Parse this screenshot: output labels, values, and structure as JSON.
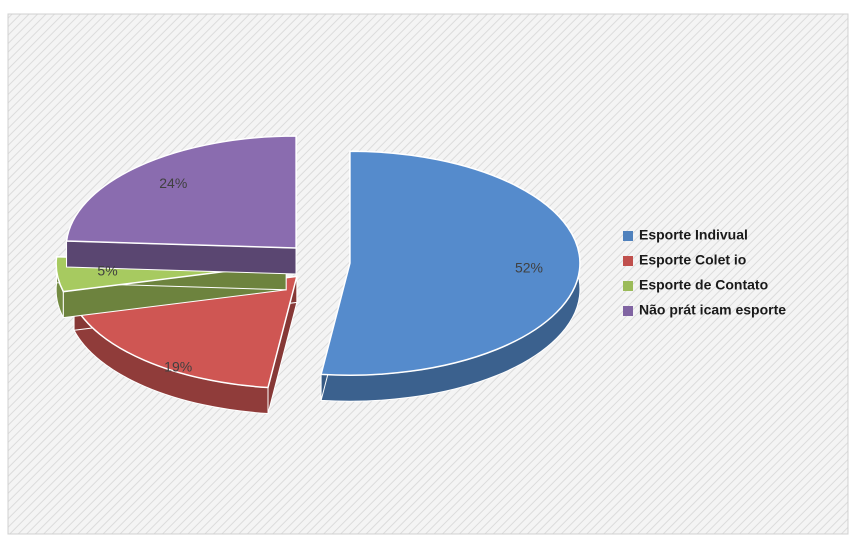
{
  "chart_data": {
    "type": "pie",
    "categories": [
      "Esporte Indivual",
      "Esporte Colet io",
      "Esporte de Contato",
      "Não prát icam esporte"
    ],
    "values": [
      52,
      19,
      5,
      24
    ],
    "value_labels": [
      "52%",
      "19%",
      "5%",
      "24%"
    ],
    "colors": [
      "#4f81bd",
      "#c0504d",
      "#9bbb59",
      "#8064a2"
    ],
    "legend": "right"
  }
}
